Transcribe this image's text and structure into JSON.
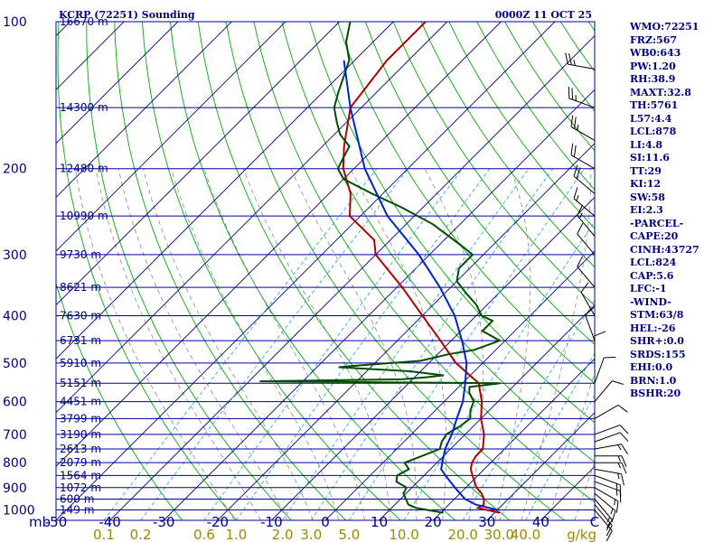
{
  "header": {
    "station": "KCRP (72251) Sounding",
    "valid_time": "0000Z 11 OCT 25"
  },
  "indices": [
    "WMO:72251",
    "FRZ:567",
    "WB0:643",
    "PW:1.20",
    "RH:38.9",
    "MAXT:32.8",
    "TH:5761",
    "L57:4.4",
    "LCL:878",
    "LI:4.8",
    "SI:11.6",
    "TT:29",
    "KI:12",
    "SW:58",
    "EI:2.3",
    "-PARCEL-",
    "CAPE:20",
    "CINH:43727",
    "LCL:824",
    "CAP:5.6",
    "LFC:-1",
    "-WIND-",
    "STM:63/8",
    "HEL:-26",
    "SHR+:0.0",
    "SRDS:155",
    "EHI:0.0",
    "BRN:1.0",
    "BSHR:20"
  ],
  "colors": {
    "isobar": "#0000a0",
    "isotherm": "#000080",
    "dry_adiabat": "#00aa00",
    "moist_adiabat": "#8a8a8a",
    "mixing_ratio": "#33aacc",
    "temperature": "#b00000",
    "dewpoint": "#004d00",
    "parcel": "#0022cc",
    "wind_barb": "#000000"
  },
  "chart_data": {
    "type": "line",
    "title": "KCRP (72251) Sounding",
    "subtitle": "0000Z 11 OCT 25",
    "y_unit": "mb",
    "x_tick_labels": [
      "-50",
      "-40",
      "-30",
      "-20",
      "-10",
      "0",
      "10",
      "20",
      "30",
      "40",
      "C"
    ],
    "x_ticks": [
      -50,
      -40,
      -30,
      -20,
      -10,
      0,
      10,
      20,
      30,
      40
    ],
    "pressure_ticks": [
      100,
      200,
      300,
      400,
      500,
      600,
      700,
      800,
      900,
      1000
    ],
    "xlim": [
      -50,
      50
    ],
    "ylim": [
      1050,
      100
    ],
    "y_scale": "log",
    "mixing_ratio_label_unit": "g/kg",
    "mixing_ratio_labels": [
      "0.1",
      "0.2",
      "0.6",
      "1.0",
      "2.0",
      "3.0",
      "5.0",
      "10.0",
      "20.0",
      "30.0",
      "40.0"
    ],
    "mixing_ratio_values": [
      0.1,
      0.2,
      0.6,
      1.0,
      2.0,
      3.0,
      5.0,
      10.0,
      20.0,
      30.0,
      40.0
    ],
    "height_levels": [
      {
        "p": 100,
        "label": "16670 m"
      },
      {
        "p": 150,
        "label": "14300 m"
      },
      {
        "p": 200,
        "label": "12480 m"
      },
      {
        "p": 250,
        "label": "10990 m"
      },
      {
        "p": 300,
        "label": "9730 m"
      },
      {
        "p": 350,
        "label": "8621 m"
      },
      {
        "p": 400,
        "label": "7630 m"
      },
      {
        "p": 450,
        "label": "6731 m"
      },
      {
        "p": 500,
        "label": "5910 m"
      },
      {
        "p": 550,
        "label": "5151 m"
      },
      {
        "p": 600,
        "label": "4451 m"
      },
      {
        "p": 650,
        "label": "3799 m"
      },
      {
        "p": 700,
        "label": "3190 m"
      },
      {
        "p": 750,
        "label": "2613 m"
      },
      {
        "p": 800,
        "label": "2079 m"
      },
      {
        "p": 850,
        "label": "1564 m"
      },
      {
        "p": 900,
        "label": "1072 m"
      },
      {
        "p": 950,
        "label": "600 m"
      },
      {
        "p": 1000,
        "label": "149 m"
      }
    ],
    "series": [
      {
        "values": [
          [
            1013,
            31
          ],
          [
            1000,
            28
          ],
          [
            990,
            26
          ],
          [
            975,
            26.5
          ],
          [
            950,
            25.5
          ],
          [
            925,
            24
          ],
          [
            900,
            22
          ],
          [
            875,
            20.5
          ],
          [
            850,
            19
          ],
          [
            825,
            17.5
          ],
          [
            800,
            16.5
          ],
          [
            775,
            16
          ],
          [
            750,
            16
          ],
          [
            700,
            13.5
          ],
          [
            650,
            10
          ],
          [
            600,
            7
          ],
          [
            550,
            3
          ],
          [
            500,
            -5
          ],
          [
            450,
            -12
          ],
          [
            400,
            -20
          ],
          [
            350,
            -29
          ],
          [
            300,
            -40
          ],
          [
            280,
            -43
          ],
          [
            250,
            -52
          ],
          [
            225,
            -56
          ],
          [
            200,
            -62
          ],
          [
            180,
            -66
          ],
          [
            150,
            -72
          ],
          [
            120,
            -74
          ],
          [
            100,
            -74
          ]
        ]
      },
      {
        "values": [
          [
            1013,
            20.5
          ],
          [
            1000,
            17
          ],
          [
            990,
            14.5
          ],
          [
            975,
            12.5
          ],
          [
            950,
            11
          ],
          [
            925,
            9.5
          ],
          [
            900,
            9
          ],
          [
            875,
            6
          ],
          [
            850,
            5
          ],
          [
            825,
            6
          ],
          [
            800,
            4
          ],
          [
            775,
            6
          ],
          [
            750,
            8
          ],
          [
            725,
            7
          ],
          [
            700,
            6.5
          ],
          [
            675,
            7.5
          ],
          [
            650,
            8
          ],
          [
            625,
            6.5
          ],
          [
            600,
            5.5
          ],
          [
            575,
            3
          ],
          [
            560,
            2
          ],
          [
            550,
            7
          ],
          [
            545,
            -38
          ],
          [
            540,
            -12
          ],
          [
            535,
            -8
          ],
          [
            530,
            -5
          ],
          [
            520,
            -12
          ],
          [
            510,
            -26
          ],
          [
            505,
            -22
          ],
          [
            495,
            -12
          ],
          [
            480,
            -8
          ],
          [
            470,
            -4
          ],
          [
            450,
            -1
          ],
          [
            430,
            -6
          ],
          [
            410,
            -6
          ],
          [
            400,
            -9
          ],
          [
            380,
            -12
          ],
          [
            360,
            -16
          ],
          [
            340,
            -20
          ],
          [
            320,
            -22
          ],
          [
            300,
            -22
          ],
          [
            290,
            -25
          ],
          [
            260,
            -35
          ],
          [
            240,
            -44
          ],
          [
            225,
            -52
          ],
          [
            210,
            -60
          ],
          [
            200,
            -63
          ],
          [
            190,
            -64
          ],
          [
            180,
            -65
          ],
          [
            170,
            -69
          ],
          [
            160,
            -72
          ],
          [
            150,
            -75
          ],
          [
            140,
            -77
          ],
          [
            120,
            -81
          ],
          [
            110,
            -85
          ],
          [
            100,
            -88
          ]
        ]
      },
      {
        "values": [
          [
            1000,
            30
          ],
          [
            975,
            25
          ],
          [
            950,
            22
          ],
          [
            925,
            20
          ],
          [
            900,
            18
          ],
          [
            875,
            16
          ],
          [
            850,
            14
          ],
          [
            825,
            12
          ],
          [
            800,
            11
          ],
          [
            750,
            9
          ],
          [
            700,
            7.5
          ],
          [
            650,
            5.5
          ],
          [
            600,
            3.5
          ],
          [
            550,
            0.5
          ],
          [
            500,
            -3
          ],
          [
            450,
            -8
          ],
          [
            400,
            -14
          ],
          [
            350,
            -22
          ],
          [
            300,
            -32
          ],
          [
            250,
            -45
          ],
          [
            200,
            -58
          ],
          [
            150,
            -72
          ],
          [
            120,
            -82
          ]
        ]
      }
    ],
    "wind_profile": [
      {
        "p": 1000,
        "dir": 140,
        "spd": 10
      },
      {
        "p": 975,
        "dir": 140,
        "spd": 15
      },
      {
        "p": 950,
        "dir": 140,
        "spd": 15
      },
      {
        "p": 925,
        "dir": 130,
        "spd": 15
      },
      {
        "p": 900,
        "dir": 120,
        "spd": 15
      },
      {
        "p": 875,
        "dir": 110,
        "spd": 15
      },
      {
        "p": 850,
        "dir": 110,
        "spd": 15
      },
      {
        "p": 825,
        "dir": 100,
        "spd": 15
      },
      {
        "p": 800,
        "dir": 90,
        "spd": 15
      },
      {
        "p": 775,
        "dir": 90,
        "spd": 15
      },
      {
        "p": 750,
        "dir": 80,
        "spd": 15
      },
      {
        "p": 725,
        "dir": 70,
        "spd": 10
      },
      {
        "p": 700,
        "dir": 70,
        "spd": 10
      },
      {
        "p": 650,
        "dir": 60,
        "spd": 10
      },
      {
        "p": 600,
        "dir": 40,
        "spd": 10
      },
      {
        "p": 550,
        "dir": 20,
        "spd": 10
      },
      {
        "p": 500,
        "dir": 360,
        "spd": 10
      },
      {
        "p": 450,
        "dir": 340,
        "spd": 10
      },
      {
        "p": 400,
        "dir": 330,
        "spd": 10
      },
      {
        "p": 350,
        "dir": 320,
        "spd": 10
      },
      {
        "p": 300,
        "dir": 320,
        "spd": 10
      },
      {
        "p": 275,
        "dir": 320,
        "spd": 15
      },
      {
        "p": 250,
        "dir": 310,
        "spd": 15
      },
      {
        "p": 225,
        "dir": 310,
        "spd": 20
      },
      {
        "p": 200,
        "dir": 300,
        "spd": 20
      },
      {
        "p": 175,
        "dir": 300,
        "spd": 25
      },
      {
        "p": 150,
        "dir": 290,
        "spd": 25
      },
      {
        "p": 125,
        "dir": 280,
        "spd": 25
      },
      {
        "p": 100,
        "dir": 270,
        "spd": 20
      }
    ]
  }
}
